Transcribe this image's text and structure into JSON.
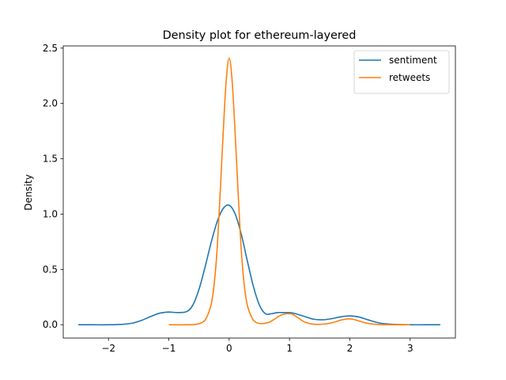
{
  "chart_data": {
    "type": "line",
    "title": "Density plot for ethereum-layered",
    "xlabel": "",
    "ylabel": "Density",
    "xlim": [
      -2.75,
      3.75
    ],
    "ylim": [
      -0.12,
      2.52
    ],
    "x_ticks": [
      -2,
      -1,
      0,
      1,
      2,
      3
    ],
    "x_tick_labels": [
      "−2",
      "−1",
      "0",
      "1",
      "2",
      "3"
    ],
    "y_ticks": [
      0.0,
      0.5,
      1.0,
      1.5,
      2.0,
      2.5
    ],
    "y_tick_labels": [
      "0.0",
      "0.5",
      "1.0",
      "1.5",
      "2.0",
      "2.5"
    ],
    "grid": false,
    "legend_position": "top-right",
    "series": [
      {
        "name": "sentiment",
        "color": "#1f77b4",
        "x": [
          -2.5,
          -2.25,
          -2.0,
          -1.75,
          -1.6,
          -1.45,
          -1.3,
          -1.15,
          -1.0,
          -0.85,
          -0.7,
          -0.6,
          -0.5,
          -0.4,
          -0.3,
          -0.2,
          -0.1,
          0.0,
          0.1,
          0.2,
          0.3,
          0.4,
          0.5,
          0.6,
          0.7,
          0.8,
          0.9,
          1.0,
          1.1,
          1.25,
          1.4,
          1.55,
          1.7,
          1.85,
          2.0,
          2.15,
          2.3,
          2.5,
          2.75,
          3.0,
          3.25,
          3.5
        ],
        "y": [
          0.0,
          0.0,
          0.0,
          0.005,
          0.015,
          0.04,
          0.075,
          0.105,
          0.115,
          0.11,
          0.12,
          0.18,
          0.32,
          0.52,
          0.74,
          0.93,
          1.05,
          1.08,
          1.0,
          0.82,
          0.58,
          0.35,
          0.18,
          0.1,
          0.1,
          0.11,
          0.11,
          0.11,
          0.1,
          0.075,
          0.05,
          0.045,
          0.055,
          0.072,
          0.08,
          0.07,
          0.045,
          0.015,
          0.003,
          0.0,
          0.0,
          0.0
        ]
      },
      {
        "name": "retweets",
        "color": "#ff7f0e",
        "x": [
          -1.0,
          -0.7,
          -0.55,
          -0.45,
          -0.38,
          -0.3,
          -0.25,
          -0.2,
          -0.15,
          -0.1,
          -0.05,
          0.0,
          0.05,
          0.1,
          0.15,
          0.2,
          0.25,
          0.3,
          0.38,
          0.45,
          0.55,
          0.65,
          0.75,
          0.85,
          0.95,
          1.0,
          1.05,
          1.15,
          1.25,
          1.4,
          1.6,
          1.75,
          1.85,
          1.95,
          2.0,
          2.05,
          2.15,
          2.25,
          2.4,
          2.6,
          3.0
        ],
        "y": [
          0.0,
          0.0,
          0.004,
          0.02,
          0.06,
          0.18,
          0.36,
          0.68,
          1.18,
          1.72,
          2.2,
          2.41,
          2.2,
          1.72,
          1.18,
          0.68,
          0.36,
          0.18,
          0.06,
          0.02,
          0.01,
          0.02,
          0.05,
          0.085,
          0.1,
          0.1,
          0.095,
          0.06,
          0.025,
          0.005,
          0.008,
          0.025,
          0.042,
          0.052,
          0.053,
          0.05,
          0.035,
          0.018,
          0.005,
          0.001,
          0.0
        ]
      }
    ]
  }
}
